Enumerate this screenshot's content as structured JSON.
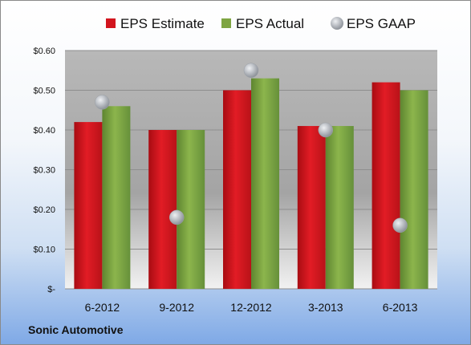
{
  "company": "Sonic Automotive",
  "chart_data": {
    "type": "bar",
    "categories": [
      "6-2012",
      "9-2012",
      "12-2012",
      "3-2013",
      "6-2013"
    ],
    "series": [
      {
        "name": "EPS Estimate",
        "type": "bar",
        "color": "#d2151e",
        "values": [
          0.42,
          0.4,
          0.5,
          0.41,
          0.52
        ]
      },
      {
        "name": "EPS Actual",
        "type": "bar",
        "color": "#7ea542",
        "values": [
          0.46,
          0.4,
          0.53,
          0.41,
          0.5
        ]
      },
      {
        "name": "EPS GAAP",
        "type": "scatter",
        "color": "#b8bdc4",
        "values": [
          0.47,
          0.18,
          0.55,
          0.4,
          0.16
        ]
      }
    ],
    "yticks": [
      "$-",
      "$0.10",
      "$0.20",
      "$0.30",
      "$0.40",
      "$0.50",
      "$0.60"
    ],
    "ylim": [
      0,
      0.6
    ],
    "grid": true,
    "legend_position": "top"
  }
}
